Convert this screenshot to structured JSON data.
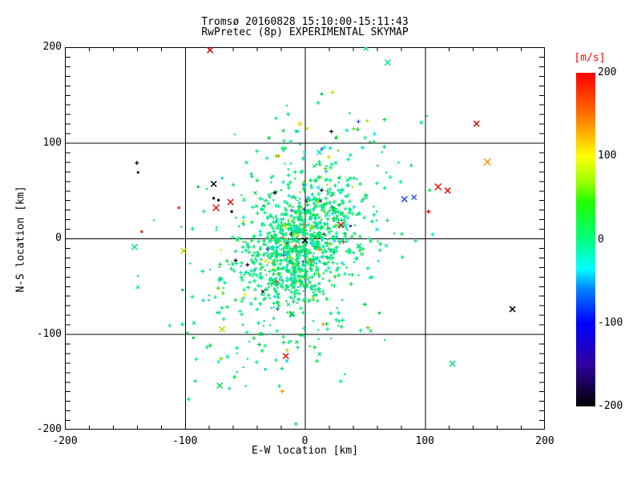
{
  "title": {
    "line1": "Tromsø 20160828 15:10:00-15:11:43",
    "line2": "RwPretec (8p) EXPERIMENTAL SKYMAP"
  },
  "axes": {
    "x": {
      "label": "E-W location [km]",
      "min": -200,
      "max": 200,
      "ticks": [
        -200,
        -100,
        0,
        100,
        200
      ],
      "minor_step": 20,
      "grid": [
        -100,
        0,
        100
      ]
    },
    "y": {
      "label": "N-S location [km]",
      "min": -200,
      "max": 200,
      "ticks": [
        200,
        100,
        0,
        -100,
        -200
      ],
      "minor_step": 10,
      "grid": [
        100,
        0,
        -100
      ]
    }
  },
  "colorbar": {
    "label": "[m/s]",
    "label_color": "#FF0000",
    "min": -200,
    "max": 200,
    "ticks": [
      200,
      100,
      0,
      -100,
      -200
    ],
    "gradient": [
      [
        "#FF0000",
        200
      ],
      [
        "#FF7000",
        150
      ],
      [
        "#FFFF00",
        100
      ],
      [
        "#A0FF00",
        70
      ],
      [
        "#20FF00",
        45
      ],
      [
        "#00FF80",
        0
      ],
      [
        "#00FFFF",
        -35
      ],
      [
        "#0080FF",
        -60
      ],
      [
        "#0000FF",
        -100
      ],
      [
        "#3000A0",
        -150
      ],
      [
        "#000000",
        -200
      ]
    ]
  },
  "chart_data": {
    "type": "scatter",
    "title": "Tromsø 20160828 15:10:00-15:11:43",
    "subtitle": "RwPretec (8p) EXPERIMENTAL SKYMAP",
    "xlabel": "E-W location [km]",
    "ylabel": "N-S location [km]",
    "xlim": [
      -200,
      200
    ],
    "ylim": [
      -200,
      200
    ],
    "grid": "full-length black gridlines at -100, 0, +100 on both axes",
    "legend": "color encodes velocity [m/s], -200 (black) to +200 (red)",
    "point_format": [
      "x_km",
      "y_km",
      "color",
      "marker",
      "size_px"
    ],
    "points": [
      [
        -79,
        197,
        "#DD0000",
        "x",
        7
      ],
      [
        51,
        199,
        "#00E87C",
        "x",
        6
      ],
      [
        69,
        184,
        "#00E87C",
        "x",
        7
      ],
      [
        143,
        120,
        "#DD0000",
        "x",
        7
      ],
      [
        152,
        80,
        "#FF9000",
        "x",
        8
      ],
      [
        111,
        54,
        "#EE1000",
        "x",
        8
      ],
      [
        119,
        50,
        "#DD0000",
        "x",
        7
      ],
      [
        83,
        41,
        "#1545DD",
        "x",
        7
      ],
      [
        91,
        43,
        "#2255EE",
        "x",
        6
      ],
      [
        103,
        28,
        "#DD0000",
        "plus",
        5
      ],
      [
        -76,
        57,
        "#000000",
        "x",
        7
      ],
      [
        -69,
        63,
        "#00E0E0",
        "dot",
        3
      ],
      [
        -89,
        54,
        "#00CC44",
        "dot",
        3
      ],
      [
        -140,
        79,
        "#000000",
        "plus",
        5
      ],
      [
        -139,
        69,
        "#202020",
        "dot",
        3
      ],
      [
        -62,
        38,
        "#EE1000",
        "x",
        7
      ],
      [
        -74,
        32,
        "#EE1000",
        "x",
        8
      ],
      [
        -76,
        42,
        "#000000",
        "dot",
        3
      ],
      [
        -72,
        40,
        "#000000",
        "dot",
        3
      ],
      [
        -61,
        28,
        "#000000",
        "dot",
        3
      ],
      [
        -105,
        32,
        "#DD2000",
        "dot",
        3
      ],
      [
        -136,
        7,
        "#DD2000",
        "dot",
        3
      ],
      [
        -142,
        -9,
        "#00E87C",
        "x",
        7
      ],
      [
        -101,
        -13,
        "#AADD00",
        "x",
        7
      ],
      [
        -4,
        120,
        "#DDDD00",
        "x",
        5
      ],
      [
        -6,
        112,
        "#00D8D8",
        "dot",
        3
      ],
      [
        -30,
        105,
        "#00CC44",
        "plus",
        5
      ],
      [
        14,
        151,
        "#00CC44",
        "dot",
        3
      ],
      [
        2,
        115,
        "#DDDD00",
        "dot",
        3
      ],
      [
        35,
        113,
        "#00D8D8",
        "plus",
        5
      ],
      [
        44,
        114,
        "#00CC44",
        "plus",
        5
      ],
      [
        52,
        123,
        "#AADD00",
        "dot",
        3
      ],
      [
        26,
        105,
        "#00CC44",
        "dot",
        3
      ],
      [
        48,
        95,
        "#00D8D8",
        "plus",
        5
      ],
      [
        20,
        85,
        "#DDDD00",
        "plus",
        5
      ],
      [
        12,
        90,
        "#00E0E0",
        "x",
        6
      ],
      [
        30,
        14,
        "#EE1000",
        "x",
        7
      ],
      [
        38,
        13,
        "#2040CC",
        "dot",
        3
      ],
      [
        13,
        39,
        "#2040CC",
        "dot",
        3
      ],
      [
        45,
        -8,
        "#00E87C",
        "x",
        6
      ],
      [
        173,
        -74,
        "#000000",
        "x",
        7
      ],
      [
        123,
        -131,
        "#00E87C",
        "x",
        7
      ],
      [
        -16,
        -123,
        "#EE1000",
        "x",
        7
      ],
      [
        -69,
        -95,
        "#AADD00",
        "x",
        7
      ],
      [
        -71,
        -154,
        "#00DC5C",
        "x",
        7
      ],
      [
        -11,
        -79,
        "#00CC44",
        "x",
        6
      ],
      [
        -72,
        -129,
        "#00E0E0",
        "plus",
        4
      ],
      [
        -33,
        -137,
        "#00D8D8",
        "dot",
        3
      ],
      [
        -79,
        -112,
        "#00CC44",
        "plus",
        5
      ],
      [
        -38,
        -111,
        "#00CC44",
        "plus",
        5
      ],
      [
        50,
        -69,
        "#00CC44",
        "plus",
        5
      ],
      [
        62,
        -78,
        "#00CC44",
        "dot",
        3
      ],
      [
        -102,
        -54,
        "#00CC44",
        "dot",
        3
      ],
      [
        -98,
        -99,
        "#00CC44",
        "plus",
        4
      ],
      [
        -93,
        -104,
        "#00CC44",
        "dot",
        3
      ],
      [
        0,
        -2,
        "#000000",
        "x",
        7
      ]
    ],
    "cluster": {
      "note": "dense echo cloud around origin, ~1270 points, mostly 0..+60 m/s (spring-green/green)",
      "seed": 7,
      "groups": [
        {
          "count": 850,
          "cx": -3,
          "cy": -5,
          "sx": 22,
          "sy": 33,
          "rho": 0.35
        },
        {
          "count": 420,
          "cx": -5,
          "cy": -8,
          "sx": 42,
          "sy": 66,
          "rho": 0.3
        }
      ],
      "color_weights": [
        [
          "#00E87C",
          0.4
        ],
        [
          "#00E262",
          0.17
        ],
        [
          "#00DC48",
          0.12
        ],
        [
          "#00E898",
          0.09
        ],
        [
          "#00E2C4",
          0.07
        ],
        [
          "#00D8EC",
          0.05
        ],
        [
          "#55DD00",
          0.025
        ],
        [
          "#A8E000",
          0.015
        ],
        [
          "#FFE000",
          0.012
        ],
        [
          "#FF8800",
          0.006
        ],
        [
          "#FF3020",
          0.008
        ],
        [
          "#3050EE",
          0.007
        ],
        [
          "#000000",
          0.01
        ]
      ],
      "marker_weights": [
        [
          "plus",
          0.6
        ],
        [
          "dot",
          0.32
        ],
        [
          "x",
          0.08
        ]
      ]
    }
  }
}
